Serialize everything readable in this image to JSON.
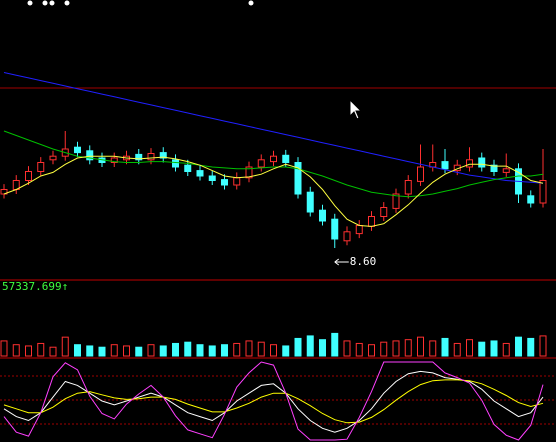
{
  "chart_data": [
    {
      "type": "candlestick",
      "open": [
        9.2,
        9.25,
        9.35,
        9.45,
        9.58,
        9.62,
        9.72,
        9.68,
        9.6,
        9.55,
        9.58,
        9.64,
        9.58,
        9.66,
        9.58,
        9.52,
        9.46,
        9.4,
        9.36,
        9.3,
        9.38,
        9.5,
        9.56,
        9.63,
        9.55,
        9.22,
        9.02,
        8.92,
        8.68,
        8.76,
        8.84,
        8.95,
        9.04,
        9.2,
        9.34,
        9.5,
        9.56,
        9.46,
        9.5,
        9.6,
        9.52,
        9.44,
        9.48,
        9.18,
        9.1
      ],
      "high": [
        9.31,
        9.41,
        9.51,
        9.61,
        9.68,
        9.9,
        9.78,
        9.74,
        9.66,
        9.66,
        9.68,
        9.7,
        9.71,
        9.72,
        9.64,
        9.58,
        9.52,
        9.46,
        9.42,
        9.44,
        9.56,
        9.64,
        9.68,
        9.69,
        9.61,
        9.28,
        9.08,
        8.98,
        8.84,
        8.91,
        9.01,
        9.11,
        9.26,
        9.41,
        9.75,
        9.75,
        9.7,
        9.58,
        9.72,
        9.66,
        9.58,
        9.65,
        9.54,
        9.24,
        9.7
      ],
      "low": [
        9.15,
        9.2,
        9.3,
        9.4,
        9.53,
        9.57,
        9.61,
        9.53,
        9.5,
        9.5,
        9.53,
        9.53,
        9.53,
        9.55,
        9.45,
        9.4,
        9.35,
        9.3,
        9.25,
        9.25,
        9.33,
        9.45,
        9.51,
        9.5,
        9.15,
        8.95,
        8.85,
        8.6,
        8.63,
        8.71,
        8.79,
        8.9,
        8.99,
        9.15,
        9.29,
        9.45,
        9.43,
        9.41,
        9.45,
        9.45,
        9.4,
        9.39,
        9.1,
        9.05,
        9.05
      ],
      "close": [
        9.25,
        9.35,
        9.45,
        9.55,
        9.62,
        9.7,
        9.66,
        9.58,
        9.55,
        9.6,
        9.62,
        9.58,
        9.65,
        9.6,
        9.5,
        9.45,
        9.4,
        9.35,
        9.3,
        9.38,
        9.5,
        9.58,
        9.62,
        9.55,
        9.2,
        9.0,
        8.9,
        8.7,
        8.78,
        8.85,
        8.95,
        9.05,
        9.2,
        9.35,
        9.5,
        9.55,
        9.48,
        9.52,
        9.58,
        9.5,
        9.45,
        9.48,
        9.2,
        9.1,
        9.35
      ],
      "series": [
        {
          "color": "#2020ff",
          "values": [
            10.55,
            10.52,
            10.49,
            10.46,
            10.43,
            10.4,
            10.37,
            10.34,
            10.31,
            10.28,
            10.25,
            10.22,
            10.19,
            10.16,
            10.13,
            10.1,
            10.07,
            10.04,
            10.01,
            9.98,
            9.95,
            9.92,
            9.89,
            9.86,
            9.83,
            9.8,
            9.77,
            9.74,
            9.71,
            9.68,
            9.65,
            9.62,
            9.59,
            9.56,
            9.53,
            9.5,
            9.47,
            9.44,
            9.41,
            9.39,
            9.37,
            9.35,
            9.34,
            9.33,
            9.32
          ]
        },
        {
          "color": "#00c000",
          "values": [
            9.9,
            9.85,
            9.8,
            9.75,
            9.7,
            9.66,
            9.62,
            9.6,
            9.58,
            9.56,
            9.55,
            9.55,
            9.56,
            9.56,
            9.55,
            9.54,
            9.52,
            9.5,
            9.49,
            9.48,
            9.48,
            9.49,
            9.5,
            9.5,
            9.48,
            9.44,
            9.4,
            9.35,
            9.3,
            9.26,
            9.22,
            9.2,
            9.18,
            9.17,
            9.18,
            9.2,
            9.23,
            9.26,
            9.3,
            9.33,
            9.36,
            9.38,
            9.4,
            9.4,
            9.42
          ]
        },
        {
          "color": "#ffff40",
          "values": [
            9.2,
            9.25,
            9.32,
            9.4,
            9.44,
            9.53,
            9.6,
            9.62,
            9.62,
            9.62,
            9.6,
            9.59,
            9.6,
            9.61,
            9.59,
            9.56,
            9.52,
            9.46,
            9.4,
            9.38,
            9.39,
            9.42,
            9.48,
            9.53,
            9.49,
            9.39,
            9.25,
            9.07,
            8.92,
            8.85,
            8.84,
            8.87,
            8.97,
            9.08,
            9.21,
            9.33,
            9.42,
            9.48,
            9.53,
            9.53,
            9.51,
            9.51,
            9.44,
            9.35,
            9.32
          ]
        }
      ],
      "up_color": "#ff3030",
      "down_color": "#40ffff",
      "annotation": {
        "value": 8.6,
        "label": "8.60"
      },
      "ylim": [
        8.3,
        11.3
      ]
    },
    {
      "type": "bar",
      "values": [
        12000,
        9000,
        8000,
        10000,
        7000,
        15000,
        9000,
        8000,
        7000,
        9000,
        8000,
        7000,
        9000,
        8000,
        10000,
        11000,
        9000,
        8000,
        9000,
        10000,
        12000,
        11000,
        9000,
        8000,
        14000,
        16000,
        13000,
        18000,
        12000,
        10000,
        9000,
        11000,
        12000,
        13000,
        15000,
        12000,
        14000,
        10000,
        13000,
        11000,
        12000,
        10000,
        15000,
        14000,
        16000
      ],
      "ylim": [
        0,
        57337.699
      ],
      "yticks": [
        {
          "value": 57337.699,
          "label": "57337.699↑"
        }
      ]
    },
    {
      "type": "line",
      "series": [
        {
          "color": "#ffffff",
          "values": [
            40,
            30,
            25,
            35,
            55,
            75,
            70,
            60,
            50,
            45,
            50,
            55,
            60,
            55,
            45,
            35,
            30,
            25,
            35,
            50,
            60,
            70,
            72,
            60,
            40,
            25,
            15,
            10,
            15,
            25,
            40,
            60,
            75,
            85,
            88,
            86,
            80,
            78,
            75,
            65,
            50,
            40,
            30,
            35,
            55
          ]
        },
        {
          "color": "#ffff00",
          "values": [
            45,
            40,
            35,
            35,
            42,
            53,
            60,
            62,
            58,
            54,
            52,
            53,
            55,
            55,
            52,
            46,
            41,
            36,
            36,
            41,
            47,
            55,
            60,
            60,
            53,
            44,
            34,
            26,
            22,
            23,
            29,
            39,
            51,
            62,
            71,
            76,
            77,
            77,
            76,
            72,
            65,
            57,
            48,
            43,
            47
          ]
        },
        {
          "color": "#ff40ff",
          "values": [
            30,
            10,
            5,
            35,
            81,
            99,
            90,
            56,
            34,
            27,
            46,
            59,
            70,
            55,
            31,
            13,
            8,
            3,
            33,
            68,
            86,
            100,
            96,
            60,
            14,
            0,
            0,
            0,
            1,
            29,
            62,
            100,
            100,
            100,
            100,
            100,
            86,
            80,
            73,
            51,
            20,
            6,
            0,
            19,
            71
          ]
        }
      ],
      "ylim": [
        0,
        100
      ]
    }
  ]
}
